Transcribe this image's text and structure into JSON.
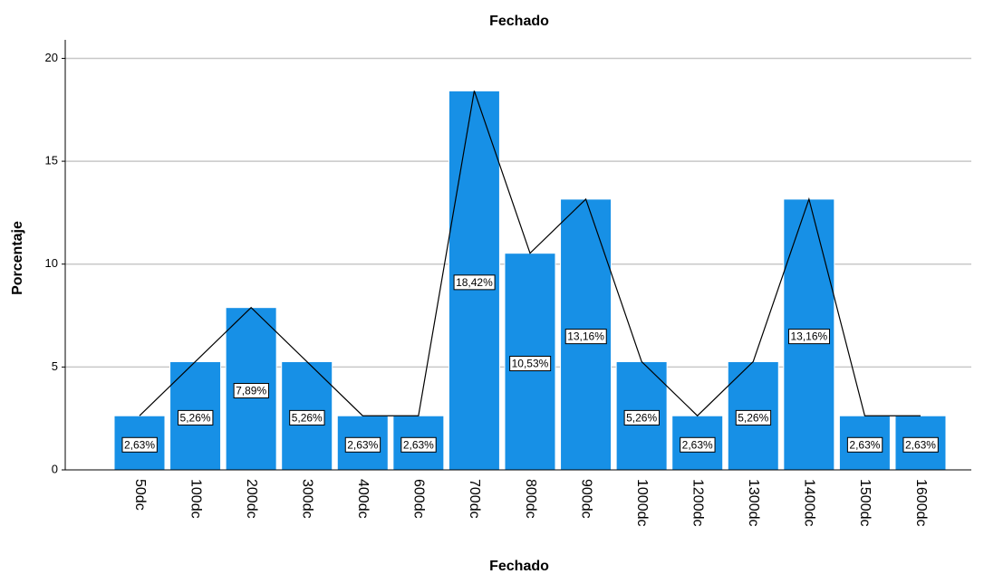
{
  "chart_data": {
    "type": "bar",
    "title": "Fechado",
    "x_label": "Fechado",
    "y_label": "Porcentaje",
    "categories": [
      "50dc",
      "100dc",
      "200dc",
      "300dc",
      "400dc",
      "600dc",
      "700dc",
      "800dc",
      "900dc",
      "1000dc",
      "1200dc",
      "1300dc",
      "1400dc",
      "1500dc",
      "1600dc"
    ],
    "values": [
      2.63,
      5.26,
      7.89,
      5.26,
      2.63,
      2.63,
      18.42,
      10.53,
      13.16,
      5.26,
      2.63,
      5.26,
      13.16,
      2.63,
      2.63
    ],
    "value_labels": [
      "2,63%",
      "5,26%",
      "7,89%",
      "5,26%",
      "2,63%",
      "2,63%",
      "18,42%",
      "10,53%",
      "13,16%",
      "5,26%",
      "2,63%",
      "5,26%",
      "13,16%",
      "2,63%",
      "2,63%"
    ],
    "color": "#1790e6",
    "line_color": "#000000",
    "ylim": [
      0,
      20.9
    ],
    "yticks": [
      0,
      5,
      10,
      15,
      20
    ],
    "grid": true
  }
}
